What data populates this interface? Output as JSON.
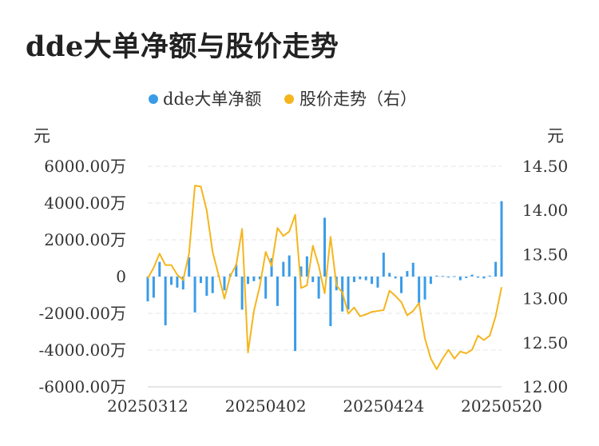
{
  "page": {
    "title": "dde大单净额与股价走势"
  },
  "chart_data": {
    "type": "bar+line",
    "title": "dde大单净额与股价走势",
    "legend": {
      "placement": "top-center",
      "entries": [
        "dde大单净额",
        "股价走势（右）"
      ]
    },
    "colors": {
      "bar": "#3a9ce8",
      "line": "#f5b51d",
      "grid": "#e4e4e4",
      "axis": "#cccccc"
    },
    "y_left": {
      "unit_label": "元",
      "range": [
        -6000,
        6000
      ],
      "ticks": [
        6000,
        4000,
        2000,
        0,
        -2000,
        -4000,
        -6000
      ],
      "tick_labels": [
        "6000.00万",
        "4000.00万",
        "2000.00万",
        "0",
        "-2000.00万",
        "-4000.00万",
        "-6000.00万"
      ]
    },
    "y_right": {
      "unit_label": "元",
      "range": [
        12.0,
        14.5
      ],
      "ticks": [
        14.5,
        14.0,
        13.5,
        13.0,
        12.5,
        12.0
      ],
      "tick_labels": [
        "14.50",
        "14.00",
        "13.50",
        "13.00",
        "12.50",
        "12.00"
      ]
    },
    "x_axis": {
      "ticks": [
        {
          "label": "20250312",
          "index": 0
        },
        {
          "label": "20250402",
          "index": 20
        },
        {
          "label": "20250424",
          "index": 40
        },
        {
          "label": "20250520",
          "index": 60
        }
      ]
    },
    "series": [
      {
        "name": "dde大单净额",
        "axis": "left",
        "type": "bar",
        "values": [
          -1350,
          -1150,
          800,
          -2650,
          -450,
          -600,
          -700,
          1050,
          -1950,
          -350,
          -1050,
          -900,
          50,
          -750,
          150,
          650,
          -1800,
          -400,
          -250,
          -150,
          -1200,
          1000,
          -1600,
          800,
          1150,
          -4050,
          550,
          1100,
          -300,
          -1200,
          3200,
          -2700,
          -750,
          -1900,
          -1800,
          -300,
          -150,
          -200,
          -400,
          -600,
          1300,
          200,
          -100,
          -900,
          300,
          750,
          -1450,
          -1250,
          -400,
          50,
          30,
          -50,
          20,
          -200,
          -80,
          100,
          -60,
          -100,
          50,
          800,
          4100
        ]
      },
      {
        "name": "股价走势（右）",
        "axis": "right",
        "type": "line",
        "values": [
          13.23,
          13.35,
          13.51,
          13.38,
          13.38,
          13.27,
          13.21,
          13.51,
          14.28,
          14.27,
          14.0,
          13.53,
          13.27,
          13.0,
          13.26,
          13.38,
          13.79,
          12.39,
          12.86,
          13.14,
          13.53,
          13.37,
          13.8,
          13.71,
          13.76,
          13.95,
          13.12,
          13.15,
          13.6,
          13.37,
          13.06,
          13.7,
          13.15,
          13.07,
          12.83,
          12.9,
          12.8,
          12.82,
          12.85,
          12.86,
          12.87,
          13.09,
          13.03,
          12.96,
          12.81,
          12.86,
          12.95,
          12.55,
          12.32,
          12.2,
          12.32,
          12.42,
          12.32,
          12.4,
          12.38,
          12.42,
          12.58,
          12.53,
          12.58,
          12.8,
          13.13
        ]
      }
    ]
  }
}
